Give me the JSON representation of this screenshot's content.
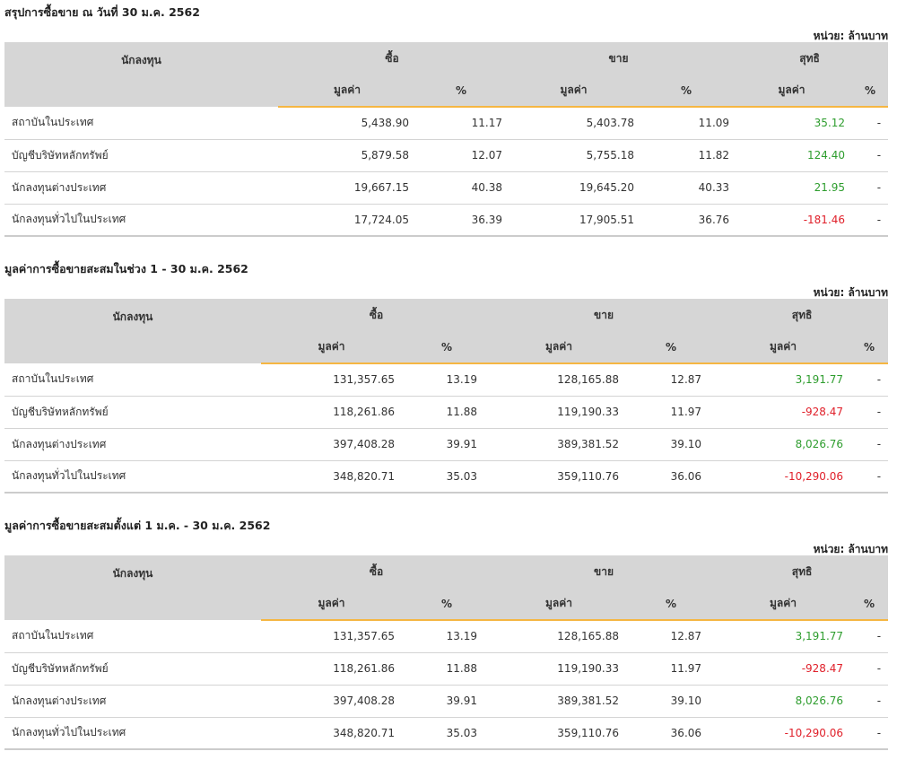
{
  "colors": {
    "accent": "#f5b642",
    "header_bg": "#d6d6d6",
    "positive": "#2e9d2e",
    "negative": "#e0202a"
  },
  "labels": {
    "unit": "หน่วย: ล้านบาท",
    "investor": "นักลงทุน",
    "buy": "ซื้อ",
    "sell": "ขาย",
    "net": "สุทธิ",
    "value": "มูลค่า",
    "percent": "%"
  },
  "sections": [
    {
      "title": "สรุปการซื้อขาย ณ วันที่ 30 ม.ค. 2562",
      "rows": [
        {
          "name": "สถาบันในประเทศ",
          "buy_value": "5,438.90",
          "buy_pct": "11.17",
          "sell_value": "5,403.78",
          "sell_pct": "11.09",
          "net_value": "35.12",
          "net_pct": "-",
          "net_sign": "pos"
        },
        {
          "name": "บัญชีบริษัทหลักทรัพย์",
          "buy_value": "5,879.58",
          "buy_pct": "12.07",
          "sell_value": "5,755.18",
          "sell_pct": "11.82",
          "net_value": "124.40",
          "net_pct": "-",
          "net_sign": "pos"
        },
        {
          "name": "นักลงทุนต่างประเทศ",
          "buy_value": "19,667.15",
          "buy_pct": "40.38",
          "sell_value": "19,645.20",
          "sell_pct": "40.33",
          "net_value": "21.95",
          "net_pct": "-",
          "net_sign": "pos"
        },
        {
          "name": "นักลงทุนทั่วไปในประเทศ",
          "buy_value": "17,724.05",
          "buy_pct": "36.39",
          "sell_value": "17,905.51",
          "sell_pct": "36.76",
          "net_value": "-181.46",
          "net_pct": "-",
          "net_sign": "neg"
        }
      ]
    },
    {
      "title": "มูลค่าการซื้อขายสะสมในช่วง 1 - 30 ม.ค. 2562",
      "rows": [
        {
          "name": "สถาบันในประเทศ",
          "buy_value": "131,357.65",
          "buy_pct": "13.19",
          "sell_value": "128,165.88",
          "sell_pct": "12.87",
          "net_value": "3,191.77",
          "net_pct": "-",
          "net_sign": "pos"
        },
        {
          "name": "บัญชีบริษัทหลักทรัพย์",
          "buy_value": "118,261.86",
          "buy_pct": "11.88",
          "sell_value": "119,190.33",
          "sell_pct": "11.97",
          "net_value": "-928.47",
          "net_pct": "-",
          "net_sign": "neg"
        },
        {
          "name": "นักลงทุนต่างประเทศ",
          "buy_value": "397,408.28",
          "buy_pct": "39.91",
          "sell_value": "389,381.52",
          "sell_pct": "39.10",
          "net_value": "8,026.76",
          "net_pct": "-",
          "net_sign": "pos"
        },
        {
          "name": "นักลงทุนทั่วไปในประเทศ",
          "buy_value": "348,820.71",
          "buy_pct": "35.03",
          "sell_value": "359,110.76",
          "sell_pct": "36.06",
          "net_value": "-10,290.06",
          "net_pct": "-",
          "net_sign": "neg"
        }
      ]
    },
    {
      "title": "มูลค่าการซื้อขายสะสมตั้งแต่ 1 ม.ค. - 30 ม.ค. 2562",
      "rows": [
        {
          "name": "สถาบันในประเทศ",
          "buy_value": "131,357.65",
          "buy_pct": "13.19",
          "sell_value": "128,165.88",
          "sell_pct": "12.87",
          "net_value": "3,191.77",
          "net_pct": "-",
          "net_sign": "pos"
        },
        {
          "name": "บัญชีบริษัทหลักทรัพย์",
          "buy_value": "118,261.86",
          "buy_pct": "11.88",
          "sell_value": "119,190.33",
          "sell_pct": "11.97",
          "net_value": "-928.47",
          "net_pct": "-",
          "net_sign": "neg"
        },
        {
          "name": "นักลงทุนต่างประเทศ",
          "buy_value": "397,408.28",
          "buy_pct": "39.91",
          "sell_value": "389,381.52",
          "sell_pct": "39.10",
          "net_value": "8,026.76",
          "net_pct": "-",
          "net_sign": "pos"
        },
        {
          "name": "นักลงทุนทั่วไปในประเทศ",
          "buy_value": "348,820.71",
          "buy_pct": "35.03",
          "sell_value": "359,110.76",
          "sell_pct": "36.06",
          "net_value": "-10,290.06",
          "net_pct": "-",
          "net_sign": "neg"
        }
      ]
    }
  ]
}
